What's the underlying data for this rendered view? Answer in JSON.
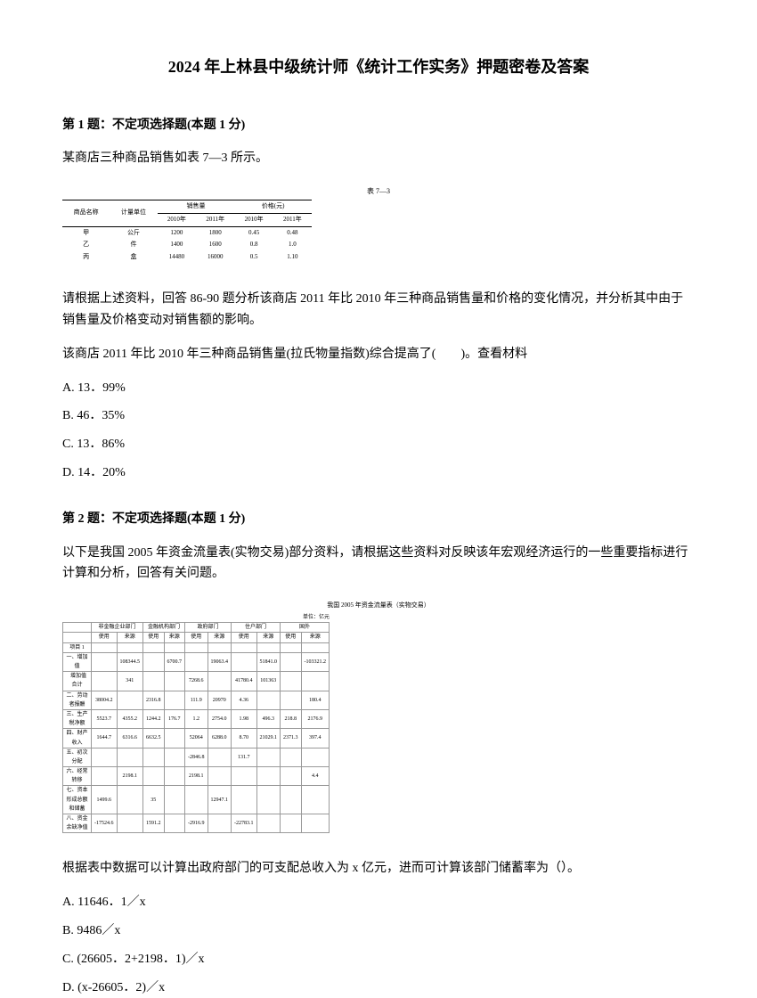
{
  "title": "2024 年上林县中级统计师《统计工作实务》押题密卷及答案",
  "q1": {
    "header": "第 1 题：不定项选择题(本题 1 分)",
    "intro": "某商店三种商品销售如表 7—3 所示。",
    "table_caption": "表 7—3",
    "table_headers": {
      "col1": "商品名称",
      "col2": "计量单位",
      "col3_group": "销售量",
      "col4_group": "价格(元)",
      "sub1": "2010年",
      "sub2": "2011年",
      "sub3": "2010年",
      "sub4": "2011年"
    },
    "table_rows": [
      [
        "甲",
        "公斤",
        "1200",
        "1800",
        "0.45",
        "0.48"
      ],
      [
        "乙",
        "件",
        "1400",
        "1600",
        "0.8",
        "1.0"
      ],
      [
        "丙",
        "盒",
        "14480",
        "16000",
        "0.5",
        "1.10"
      ]
    ],
    "body1": "请根据上述资料，回答 86-90 题分析该商店 2011 年比 2010 年三种商品销售量和价格的变化情况，并分析其中由于销售量及价格变动对销售额的影响。",
    "body2": "该商店 2011 年比 2010 年三种商品销售量(拉氏物量指数)综合提高了(　　)。查看材料",
    "options": {
      "a": "A. 13．99%",
      "b": "B. 46．35%",
      "c": "C. 13．86%",
      "d": "D. 14．20%"
    }
  },
  "q2": {
    "header": "第 2 题：不定项选择题(本题 1 分)",
    "intro": "以下是我国 2005 年资金流量表(实物交易)部分资料，请根据这些资料对反映该年宏观经济运行的一些重要指标进行计算和分析，回答有关问题。",
    "table_caption": "我国 2005 年资金流量表（实物交易）",
    "table_unit": "单位：亿元",
    "body1": "根据表中数据可以计算出政府部门的可支配总收入为 x 亿元，进而可计算该部门储蓄率为（）。",
    "options": {
      "a": "A. 11646．1／x",
      "b": "B. 9486／x",
      "c": "C. (26605．2+2198．1)／x",
      "d": "D. (x-26605．2)／x"
    }
  }
}
